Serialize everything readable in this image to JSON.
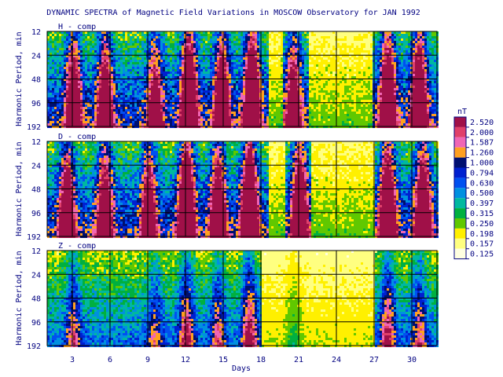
{
  "chart_data": {
    "type": "heatmap",
    "title": "DYNAMIC SPECTRA of Magnetic Field Variations in MOSCOW Observatory for JAN 1992",
    "xlabel": "Days",
    "ylabel": "Harmonic Period, min",
    "x_ticks": [
      "3",
      "6",
      "9",
      "12",
      "15",
      "18",
      "21",
      "24",
      "27",
      "30"
    ],
    "x_tick_values": [
      3,
      6,
      9,
      12,
      15,
      18,
      21,
      24,
      27,
      30
    ],
    "xlim": [
      1,
      32
    ],
    "y_ticks": [
      "12",
      "24",
      "48",
      "96",
      "192"
    ],
    "y_scale": "log2",
    "y_reversed": true,
    "panels": [
      {
        "label": "H - comp"
      },
      {
        "label": "D - comp"
      },
      {
        "label": "Z - comp"
      }
    ],
    "colorbar": {
      "unit": "nT",
      "levels": [
        "2.520",
        "2.000",
        "1.587",
        "1.260",
        "1.000",
        "0.794",
        "0.630",
        "0.500",
        "0.397",
        "0.315",
        "0.250",
        "0.198",
        "0.157",
        "0.125"
      ],
      "colors": [
        "#a01048",
        "#e0406a",
        "#f066b4",
        "#ffa020",
        "#001070",
        "#0020d0",
        "#0050f0",
        "#0090e0",
        "#00b8a0",
        "#00b040",
        "#60c800",
        "#fff000",
        "#ffff80",
        "#ffffe0"
      ]
    }
  }
}
